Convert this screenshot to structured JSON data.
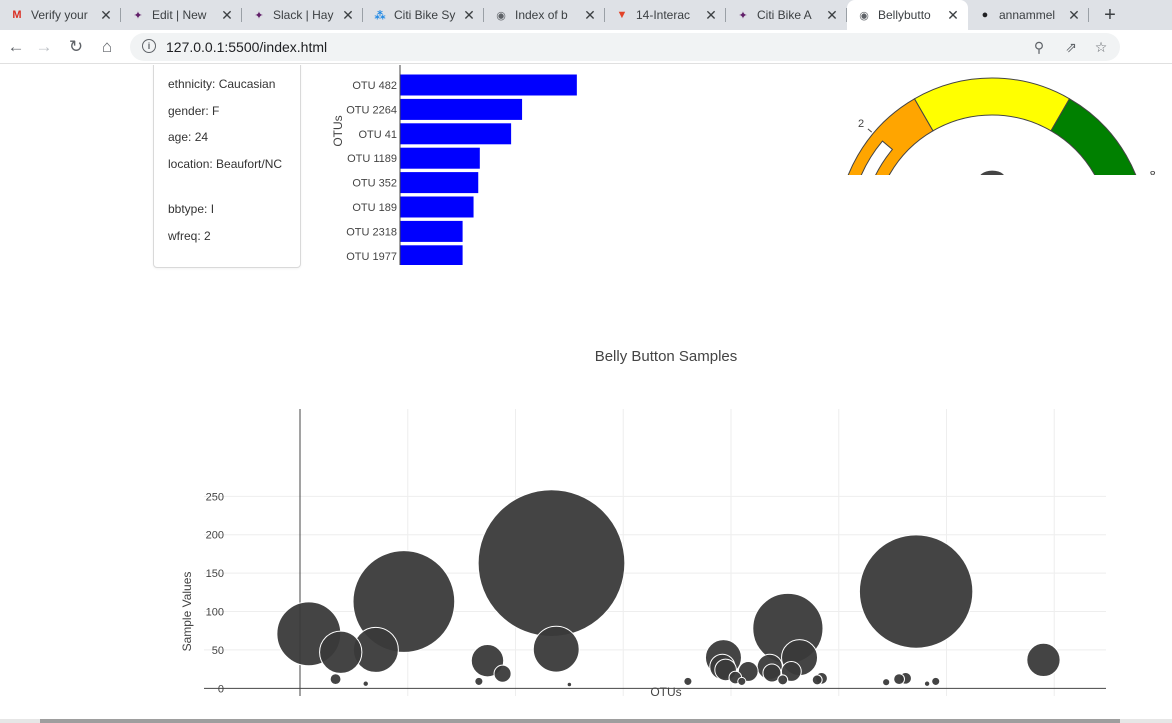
{
  "browser": {
    "tabs": [
      {
        "label": "Verify your",
        "icon": "gmail-icon",
        "left": 0,
        "width": 121
      },
      {
        "label": "Edit | New",
        "icon": "slack-icon",
        "left": 121,
        "width": 121
      },
      {
        "label": "Slack | Hay",
        "icon": "slack-icon",
        "left": 242,
        "width": 121
      },
      {
        "label": "Citi Bike Sy",
        "icon": "bike-icon",
        "left": 363,
        "width": 121
      },
      {
        "label": "Index of b",
        "icon": "globe-icon",
        "left": 484,
        "width": 121
      },
      {
        "label": "14-Interac",
        "icon": "gitlab-icon",
        "left": 605,
        "width": 121
      },
      {
        "label": "Citi Bike A",
        "icon": "slack-icon",
        "left": 726,
        "width": 121
      },
      {
        "label": "Bellybutto",
        "icon": "globe-icon",
        "left": 847,
        "width": 121,
        "active": true
      },
      {
        "label": "annammel",
        "icon": "github-icon",
        "left": 968,
        "width": 121
      }
    ],
    "new_tab": "+",
    "url": "127.0.0.1:5500/index.html"
  },
  "metadata": {
    "lines": [
      "ethnicity: Caucasian",
      "gender: F",
      "age: 24",
      "location: Beaufort/NC",
      "bbtype: I",
      "wfreq: 2"
    ]
  },
  "chart_data": [
    {
      "type": "bar",
      "orientation": "horizontal",
      "title": "",
      "ylabel": "OTUs",
      "categories": [
        "OTU 482",
        "OTU 2264",
        "OTU 41",
        "OTU 1189",
        "OTU 352",
        "OTU 189",
        "OTU 2318",
        "OTU 1977"
      ],
      "values": [
        113,
        78,
        71,
        51,
        50,
        47,
        40,
        40
      ],
      "xticks": [
        0,
        50,
        100,
        150
      ],
      "xlim": [
        0,
        160
      ],
      "color": "#0000ff"
    },
    {
      "type": "gauge",
      "value": 2,
      "range": [
        0,
        9
      ],
      "tick_labels": [
        "0",
        "2",
        "8"
      ],
      "colors": {
        "low": "#ffa500",
        "mid": "#ffff00",
        "high": "#008000",
        "bar": "#ffffff"
      }
    },
    {
      "type": "scatter",
      "title": "Belly Button Samples",
      "xlabel": "OTUs",
      "ylabel": "Sample Values",
      "xlim": [
        -500,
        3750
      ],
      "ylim": [
        -10,
        290
      ],
      "xticks": [
        0,
        500,
        1000,
        1500,
        2000,
        2500,
        3000,
        3500
      ],
      "yticks": [
        0,
        50,
        100,
        150,
        200,
        250
      ],
      "marker_color": "#3a3a3a",
      "points": [
        {
          "x": 41,
          "y": 71
        },
        {
          "x": 189,
          "y": 47
        },
        {
          "x": 352,
          "y": 50
        },
        {
          "x": 482,
          "y": 113
        },
        {
          "x": 870,
          "y": 36
        },
        {
          "x": 940,
          "y": 19
        },
        {
          "x": 165,
          "y": 12
        },
        {
          "x": 305,
          "y": 6
        },
        {
          "x": 830,
          "y": 9
        },
        {
          "x": 1167,
          "y": 163
        },
        {
          "x": 1189,
          "y": 51
        },
        {
          "x": 1250,
          "y": 5
        },
        {
          "x": 1800,
          "y": 9
        },
        {
          "x": 1965,
          "y": 40
        },
        {
          "x": 1960,
          "y": 28
        },
        {
          "x": 1975,
          "y": 24
        },
        {
          "x": 2020,
          "y": 14
        },
        {
          "x": 2050,
          "y": 9
        },
        {
          "x": 2080,
          "y": 22
        },
        {
          "x": 2180,
          "y": 28
        },
        {
          "x": 2190,
          "y": 20
        },
        {
          "x": 2240,
          "y": 11
        },
        {
          "x": 2264,
          "y": 78
        },
        {
          "x": 2280,
          "y": 22
        },
        {
          "x": 2318,
          "y": 40
        },
        {
          "x": 2400,
          "y": 11
        },
        {
          "x": 2420,
          "y": 13
        },
        {
          "x": 2720,
          "y": 8
        },
        {
          "x": 2780,
          "y": 12
        },
        {
          "x": 2810,
          "y": 13
        },
        {
          "x": 2859,
          "y": 126
        },
        {
          "x": 2910,
          "y": 6
        },
        {
          "x": 2950,
          "y": 9
        },
        {
          "x": 3450,
          "y": 37
        }
      ]
    }
  ]
}
